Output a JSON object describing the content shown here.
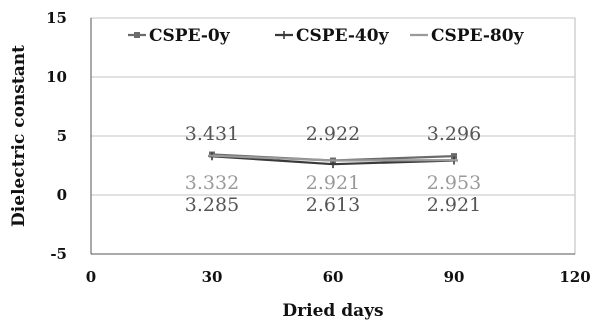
{
  "chart_data": {
    "type": "line",
    "title": "",
    "xlabel": "Dried days",
    "ylabel": "Dielectric constant",
    "xlim": [
      0,
      120
    ],
    "ylim": [
      -5,
      15
    ],
    "x_ticks": [
      "0",
      "30",
      "60",
      "90",
      "120"
    ],
    "y_ticks": [
      "-5",
      "0",
      "5",
      "10",
      "15"
    ],
    "grid": "horizontal",
    "legend_position": "top",
    "x": [
      30,
      60,
      90
    ],
    "series": [
      {
        "name": "CSPE-0y",
        "values": [
          3.431,
          2.922,
          3.296
        ],
        "labels": [
          "3.431",
          "2.922",
          "3.296"
        ],
        "color": "#6b6b6b",
        "marker": "square"
      },
      {
        "name": "CSPE-40y",
        "values": [
          3.285,
          2.613,
          2.921
        ],
        "labels": [
          "3.285",
          "2.613",
          "2.921"
        ],
        "color": "#3a3a3a",
        "marker": "plus"
      },
      {
        "name": "CSPE-80y",
        "values": [
          3.332,
          2.921,
          2.953
        ],
        "labels": [
          "3.332",
          "2.921",
          "2.953"
        ],
        "color": "#9a9a9a",
        "marker": "dash"
      }
    ]
  }
}
